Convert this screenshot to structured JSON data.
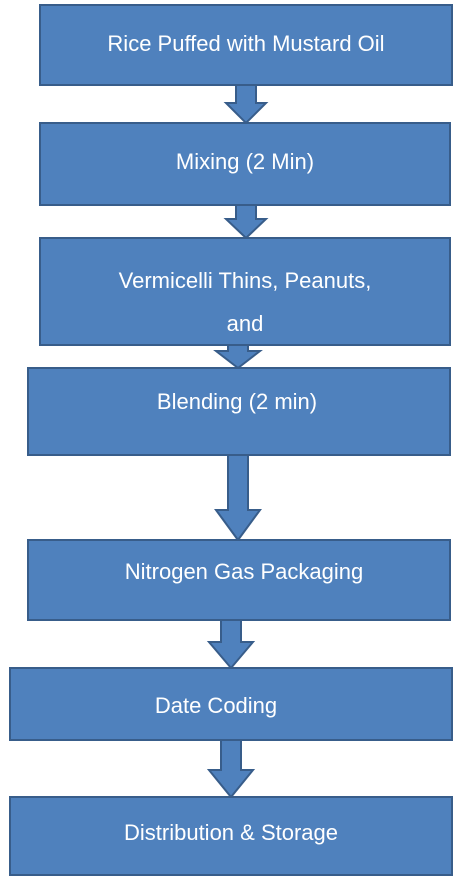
{
  "nodes": [
    {
      "lines": [
        "Rice Puffed with Mustard Oil"
      ]
    },
    {
      "lines": [
        "Mixing (2 Min)"
      ]
    },
    {
      "lines": [
        "Vermicelli Thins, Peanuts,",
        "and"
      ]
    },
    {
      "lines": [
        "Blending (2 min)"
      ]
    },
    {
      "lines": [
        "Nitrogen Gas Packaging"
      ]
    },
    {
      "lines": [
        "Date Coding"
      ]
    },
    {
      "lines": [
        "Distribution & Storage"
      ]
    }
  ]
}
